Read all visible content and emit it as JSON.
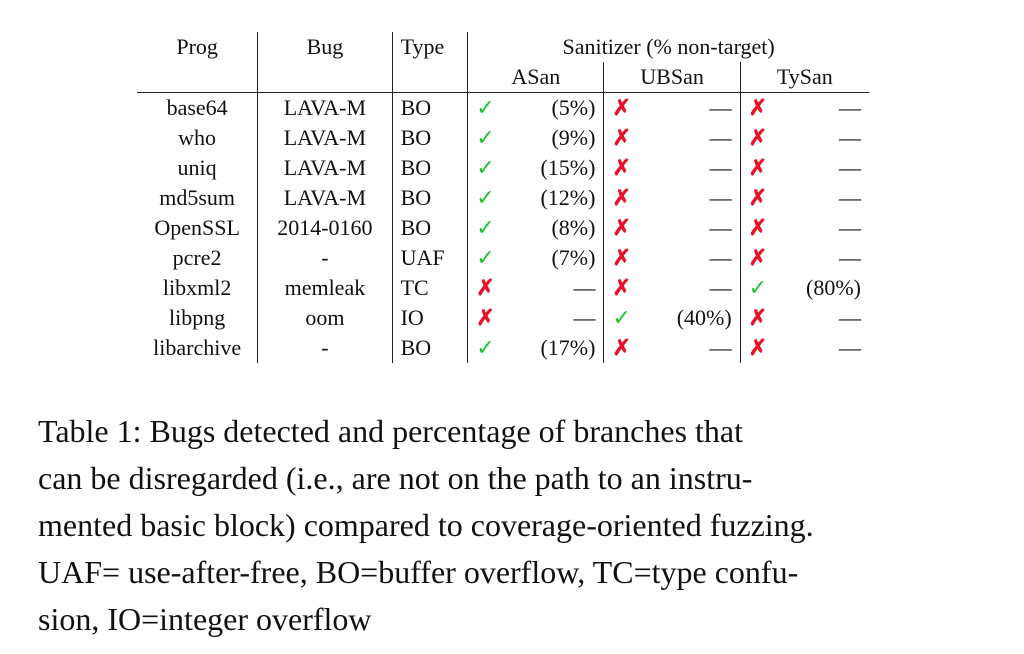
{
  "table": {
    "headers": {
      "prog": "Prog",
      "bug": "Bug",
      "type": "Type",
      "sanitizer": "Sanitizer (% non-target)",
      "asan": "ASan",
      "ubsan": "UBSan",
      "tysan": "TySan"
    },
    "rows": [
      {
        "prog": "base64",
        "bug": "LAVA-M",
        "type": "BO",
        "asan_mark": "✓",
        "asan_pct": "(5%)",
        "ubsan_mark": "✗",
        "ubsan_pct": "—",
        "tysan_mark": "✗",
        "tysan_pct": "—"
      },
      {
        "prog": "who",
        "bug": "LAVA-M",
        "type": "BO",
        "asan_mark": "✓",
        "asan_pct": "(9%)",
        "ubsan_mark": "✗",
        "ubsan_pct": "—",
        "tysan_mark": "✗",
        "tysan_pct": "—"
      },
      {
        "prog": "uniq",
        "bug": "LAVA-M",
        "type": "BO",
        "asan_mark": "✓",
        "asan_pct": "(15%)",
        "ubsan_mark": "✗",
        "ubsan_pct": "—",
        "tysan_mark": "✗",
        "tysan_pct": "—"
      },
      {
        "prog": "md5sum",
        "bug": "LAVA-M",
        "type": "BO",
        "asan_mark": "✓",
        "asan_pct": "(12%)",
        "ubsan_mark": "✗",
        "ubsan_pct": "—",
        "tysan_mark": "✗",
        "tysan_pct": "—"
      },
      {
        "prog": "OpenSSL",
        "bug": "2014-0160",
        "type": "BO",
        "asan_mark": "✓",
        "asan_pct": "(8%)",
        "ubsan_mark": "✗",
        "ubsan_pct": "—",
        "tysan_mark": "✗",
        "tysan_pct": "—"
      },
      {
        "prog": "pcre2",
        "bug": "-",
        "type": "UAF",
        "asan_mark": "✓",
        "asan_pct": "(7%)",
        "ubsan_mark": "✗",
        "ubsan_pct": "—",
        "tysan_mark": "✗",
        "tysan_pct": "—"
      },
      {
        "prog": "libxml2",
        "bug": "memleak",
        "type": "TC",
        "asan_mark": "✗",
        "asan_pct": "—",
        "ubsan_mark": "✗",
        "ubsan_pct": "—",
        "tysan_mark": "✓",
        "tysan_pct": "(80%)"
      },
      {
        "prog": "libpng",
        "bug": "oom",
        "type": "IO",
        "asan_mark": "✗",
        "asan_pct": "—",
        "ubsan_mark": "✓",
        "ubsan_pct": "(40%)",
        "tysan_mark": "✗",
        "tysan_pct": "—"
      },
      {
        "prog": "libarchive",
        "bug": "-",
        "type": "BO",
        "asan_mark": "✓",
        "asan_pct": "(17%)",
        "ubsan_mark": "✗",
        "ubsan_pct": "—",
        "tysan_mark": "✗",
        "tysan_pct": "—"
      }
    ]
  },
  "caption": {
    "lines": [
      "Table 1:  Bugs detected and percentage of branches that",
      "can be disregarded (i.e., are not on the path to an instru-",
      "mented basic block) compared to coverage-oriented fuzzing.",
      "UAF= use-after-free, BO=buffer overflow, TC=type confu-",
      "sion, IO=integer overflow"
    ]
  },
  "colors": {
    "check": "#22c232",
    "cross": "#e8102a"
  }
}
